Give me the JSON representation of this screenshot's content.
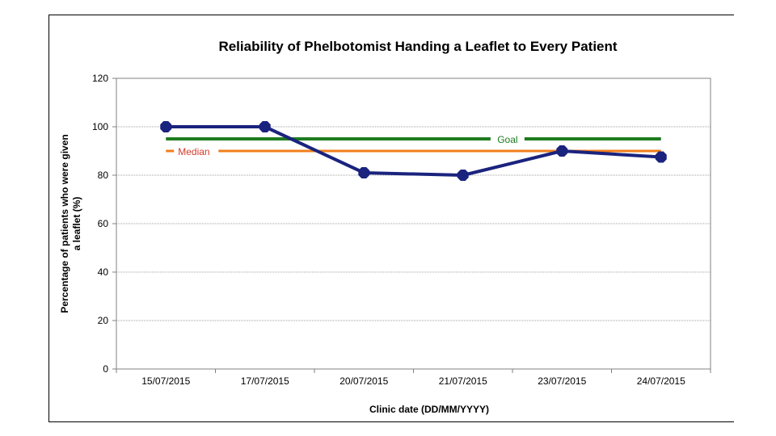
{
  "chart_data": {
    "type": "line",
    "title": "Reliability of Phelbotomist Handing a Leaflet to Every Patient",
    "xlabel": "Clinic date (DD/MM/YYYY)",
    "ylabel_lines": [
      "Percentage of patients who were given",
      "a leaflet (%)"
    ],
    "categories": [
      "15/07/2015",
      "17/07/2015",
      "20/07/2015",
      "21/07/2015",
      "23/07/2015",
      "24/07/2015"
    ],
    "series": [
      {
        "values": [
          100,
          100,
          81,
          80,
          90,
          87.5
        ],
        "color": "#1a237e"
      }
    ],
    "reference_lines": [
      {
        "name": "Goal",
        "value": 95,
        "color": "#1e7b1e",
        "label_color": "#1e7b1e"
      },
      {
        "name": "Median",
        "value": 90,
        "color": "#f07d1b",
        "label_color": "#d23b2b"
      }
    ],
    "ylim": [
      0,
      120
    ],
    "yticks": [
      0,
      20,
      40,
      60,
      80,
      100,
      120
    ],
    "grid": true
  }
}
